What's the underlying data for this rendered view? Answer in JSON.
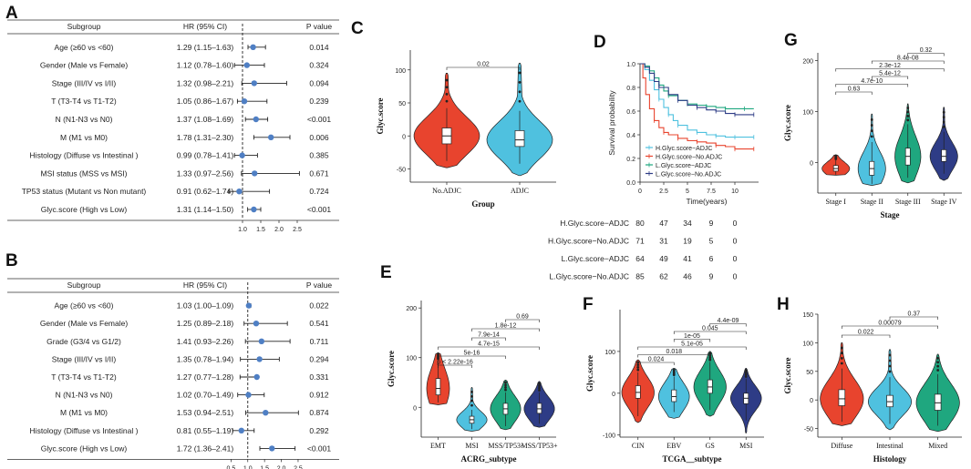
{
  "chart_data": [
    {
      "panel": "A",
      "type": "table",
      "subtype": "forest",
      "headers": [
        "Subgroup",
        "HR (95% CI)",
        "P value"
      ],
      "rows": [
        {
          "label": "Age (≥60 vs <60)",
          "hr_text": "1.29 (1.15–1.63)",
          "p": "0.014",
          "hr": 1.29,
          "lo": 1.15,
          "hi": 1.63
        },
        {
          "label": "Gender (Male vs Female)",
          "hr_text": "1.12 (0.78–1.60)",
          "p": "0.324",
          "hr": 1.12,
          "lo": 0.78,
          "hi": 1.6
        },
        {
          "label": "Stage (III/IV vs I/II)",
          "hr_text": "1.32 (0.98–2.21)",
          "p": "0.094",
          "hr": 1.32,
          "lo": 0.98,
          "hi": 2.21
        },
        {
          "label": "T (T3-T4 vs T1-T2)",
          "hr_text": "1.05 (0.86–1.67)",
          "p": "0.239",
          "hr": 1.05,
          "lo": 0.86,
          "hi": 1.67
        },
        {
          "label": "N (N1-N3 vs N0)",
          "hr_text": "1.37 (1.08–1.69)",
          "p": "<0.001",
          "hr": 1.37,
          "lo": 1.08,
          "hi": 1.69
        },
        {
          "label": "M (M1 vs M0)",
          "hr_text": "1.78 (1.31–2.30)",
          "p": "0.006",
          "hr": 1.78,
          "lo": 1.31,
          "hi": 2.3
        },
        {
          "label": "Histology (Diffuse vs Intestinal )",
          "hr_text": "0.99 (0.78–1.41)",
          "p": "0.385",
          "hr": 0.99,
          "lo": 0.78,
          "hi": 1.41
        },
        {
          "label": "MSI status (MSS vs MSI)",
          "hr_text": "1.33 (0.97–2.56)",
          "p": "0.671",
          "hr": 1.33,
          "lo": 0.97,
          "hi": 2.56
        },
        {
          "label": "TP53 status (Mutant vs Non mutant)",
          "hr_text": "0.91 (0.62–1.74)",
          "p": "0.724",
          "hr": 0.91,
          "lo": 0.62,
          "hi": 1.74
        },
        {
          "label": "Glyc.score (High vs Low)",
          "hr_text": "1.31 (1.14–1.50)",
          "p": "<0.001",
          "hr": 1.31,
          "lo": 1.14,
          "hi": 1.5
        }
      ],
      "xticks": [
        "1.0",
        "1.5",
        "2.0",
        "2.5"
      ],
      "ref_line": 1.0,
      "xlim": [
        0.5,
        2.8
      ]
    },
    {
      "panel": "B",
      "type": "table",
      "subtype": "forest",
      "headers": [
        "Subgroup",
        "HR (95% CI)",
        "P value"
      ],
      "rows": [
        {
          "label": "Age (≥60 vs <60)",
          "hr_text": "1.03 (1.00–1.09)",
          "p": "0.022",
          "hr": 1.03,
          "lo": 1.0,
          "hi": 1.09
        },
        {
          "label": "Gender (Male vs Female)",
          "hr_text": "1.25 (0.89–2.18)",
          "p": "0.541",
          "hr": 1.25,
          "lo": 0.89,
          "hi": 2.18
        },
        {
          "label": "Grade (G3/4 vs G1/2)",
          "hr_text": "1.41 (0.93–2.26)",
          "p": "0.711",
          "hr": 1.41,
          "lo": 0.93,
          "hi": 2.26
        },
        {
          "label": "Stage (III/IV vs I/II)",
          "hr_text": "1.35 (0.78–1.94)",
          "p": "0.294",
          "hr": 1.35,
          "lo": 0.78,
          "hi": 1.94
        },
        {
          "label": "T (T3-T4 vs T1-T2)",
          "hr_text": "1.27 (0.77–1.28)",
          "p": "0.331",
          "hr": 1.27,
          "lo": 0.77,
          "hi": 1.28
        },
        {
          "label": "N (N1-N3 vs N0)",
          "hr_text": "1.02 (0.70–1.49)",
          "p": "0.912",
          "hr": 1.02,
          "lo": 0.7,
          "hi": 1.49
        },
        {
          "label": "M (M1 vs M0)",
          "hr_text": "1.53 (0.94–2.51)",
          "p": "0.874",
          "hr": 1.53,
          "lo": 0.94,
          "hi": 2.51
        },
        {
          "label": "Histology (Diffuse vs Intestinal )",
          "hr_text": "0.81 (0.55–1.19)",
          "p": "0.292",
          "hr": 0.81,
          "lo": 0.55,
          "hi": 1.19
        },
        {
          "label": "Glyc.score (High vs Low)",
          "hr_text": "1.72 (1.36–2.41)",
          "p": "<0.001",
          "hr": 1.72,
          "lo": 1.36,
          "hi": 2.41
        }
      ],
      "xticks": [
        "0.5",
        "1.0",
        "1.5",
        "2.0",
        "2.5"
      ],
      "ref_line": 1.0,
      "xlim": [
        0.3,
        2.8
      ]
    },
    {
      "panel": "C",
      "type": "violin",
      "title": "",
      "xlabel": "Group",
      "ylabel": "Glyc.score",
      "ylim": [
        -70,
        130
      ],
      "yticks": [
        -50,
        0,
        50,
        100
      ],
      "groups": [
        {
          "name": "No.ADJC",
          "color": "#E8442E",
          "median": 0,
          "q1": -12,
          "q3": 12,
          "min": -48,
          "max": 95,
          "wlo": -38,
          "whi": 42,
          "width": 1.0
        },
        {
          "name": "ADJC",
          "color": "#4FC1DF",
          "median": -6,
          "q1": -16,
          "q3": 8,
          "min": -60,
          "max": 110,
          "wlo": -42,
          "whi": 38,
          "width": 1.0
        }
      ],
      "comparisons": [
        {
          "a": 0,
          "b": 1,
          "p": "0.02"
        }
      ]
    },
    {
      "panel": "D",
      "type": "line",
      "subtype": "kaplan-meier",
      "xlabel": "Time(years)",
      "ylabel": "Survival probability",
      "xlim": [
        0,
        12.5
      ],
      "ylim": [
        0,
        1.0
      ],
      "xticks": [
        0.0,
        2.5,
        5.0,
        7.5,
        10.0
      ],
      "xtick_labels": [
        "0",
        "2.5",
        "5",
        "7.5",
        "10"
      ],
      "yticks": [
        "0.0",
        "0.2",
        "0.4",
        "0.6",
        "0.8",
        "1.0"
      ],
      "series": [
        {
          "name": "H.Glyc.score−ADJC",
          "color": "#4FC1DF",
          "x": [
            0,
            0.5,
            1,
            1.5,
            2,
            2.5,
            3,
            3.5,
            4,
            5,
            6,
            7,
            8,
            9,
            10,
            11,
            12
          ],
          "y": [
            1.0,
            0.95,
            0.86,
            0.78,
            0.7,
            0.63,
            0.57,
            0.52,
            0.48,
            0.44,
            0.42,
            0.4,
            0.39,
            0.38,
            0.38,
            0.38,
            0.38
          ]
        },
        {
          "name": "H.Glyc.score−No.ADJC",
          "color": "#E8442E",
          "x": [
            0,
            0.3,
            0.6,
            1,
            1.5,
            2,
            2.5,
            3,
            4,
            5,
            6,
            7,
            8,
            9,
            10,
            11,
            12
          ],
          "y": [
            1.0,
            0.88,
            0.74,
            0.62,
            0.52,
            0.46,
            0.42,
            0.4,
            0.37,
            0.35,
            0.34,
            0.33,
            0.31,
            0.3,
            0.28,
            0.28,
            0.28
          ]
        },
        {
          "name": "L.Glyc.score−ADJC",
          "color": "#1FA77F",
          "x": [
            0,
            0.5,
            1,
            1.5,
            2,
            2.5,
            3,
            4,
            5,
            6,
            7,
            8,
            9,
            10,
            11,
            12
          ],
          "y": [
            1.0,
            0.98,
            0.94,
            0.88,
            0.82,
            0.77,
            0.73,
            0.69,
            0.66,
            0.65,
            0.64,
            0.63,
            0.62,
            0.62,
            0.62,
            0.62
          ]
        },
        {
          "name": "L.Glyc.score−No.ADJC",
          "color": "#2E3C86",
          "x": [
            0,
            0.5,
            1,
            1.5,
            2,
            3,
            4,
            5,
            6,
            7,
            8,
            9,
            10,
            11,
            12
          ],
          "y": [
            1.0,
            0.97,
            0.92,
            0.85,
            0.8,
            0.74,
            0.69,
            0.65,
            0.63,
            0.61,
            0.6,
            0.58,
            0.57,
            0.57,
            0.57
          ]
        }
      ],
      "risk_table": {
        "rows": [
          {
            "name": "H.Glyc.score−ADJC",
            "color": "#4FC1DF",
            "counts": [
              "80",
              "47",
              "34",
              "9",
              "0"
            ]
          },
          {
            "name": "H.Glyc.score−No.ADJC",
            "color": "#E8442E",
            "counts": [
              "71",
              "31",
              "19",
              "5",
              "0"
            ]
          },
          {
            "name": "L.Glyc.score−ADJC",
            "color": "#1FA77F",
            "counts": [
              "64",
              "49",
              "41",
              "6",
              "0"
            ]
          },
          {
            "name": "L.Glyc.score−No.ADJC",
            "color": "#2E3C86",
            "counts": [
              "85",
              "62",
              "46",
              "9",
              "0"
            ]
          }
        ]
      }
    },
    {
      "panel": "E",
      "type": "violin",
      "xlabel": "ACRG_subtype",
      "ylabel": "Glyc.score",
      "ylim": [
        -60,
        215
      ],
      "yticks": [
        0,
        100,
        200
      ],
      "groups": [
        {
          "name": "EMT",
          "color": "#E8442E",
          "median": 38,
          "q1": 25,
          "q3": 58,
          "min": 5,
          "max": 110,
          "wlo": 10,
          "whi": 95,
          "width": 0.75
        },
        {
          "name": "MSI",
          "color": "#4FC1DF",
          "median": -25,
          "q1": -32,
          "q3": -18,
          "min": -48,
          "max": 40,
          "wlo": -44,
          "whi": -5,
          "width": 1.0
        },
        {
          "name": "MSS/TP53-",
          "color": "#1FA77F",
          "median": -3,
          "q1": -14,
          "q3": 8,
          "min": -45,
          "max": 55,
          "wlo": -38,
          "whi": 30,
          "width": 1.0
        },
        {
          "name": "MSS/TP53+",
          "color": "#2E3C86",
          "median": -3,
          "q1": -12,
          "q3": 8,
          "min": -40,
          "max": 52,
          "wlo": -33,
          "whi": 30,
          "width": 1.0
        }
      ],
      "comparisons": [
        {
          "a": 0,
          "b": 1,
          "p": "p < 2.22e-16"
        },
        {
          "a": 0,
          "b": 2,
          "p": "5e-16"
        },
        {
          "a": 0,
          "b": 3,
          "p": "4.7e-15"
        },
        {
          "a": 1,
          "b": 2,
          "p": "7.9e-14"
        },
        {
          "a": 1,
          "b": 3,
          "p": "1.8e-12"
        },
        {
          "a": 2,
          "b": 3,
          "p": "0.69"
        }
      ]
    },
    {
      "panel": "F",
      "type": "violin",
      "xlabel": "TCGA__subtype",
      "ylabel": "Glyc.score",
      "ylim": [
        -105,
        200
      ],
      "yticks": [
        -100,
        0,
        100
      ],
      "groups": [
        {
          "name": "CIN",
          "color": "#E8442E",
          "median": 2,
          "q1": -12,
          "q3": 18,
          "min": -70,
          "max": 80,
          "wlo": -55,
          "whi": 50,
          "width": 1.0
        },
        {
          "name": "EBV",
          "color": "#4FC1DF",
          "median": -8,
          "q1": -20,
          "q3": 8,
          "min": -60,
          "max": 60,
          "wlo": -45,
          "whi": 40,
          "width": 0.95
        },
        {
          "name": "GS",
          "color": "#1FA77F",
          "median": 15,
          "q1": 0,
          "q3": 32,
          "min": -55,
          "max": 100,
          "wlo": -40,
          "whi": 75,
          "width": 1.0
        },
        {
          "name": "MSI",
          "color": "#2E3C86",
          "median": -12,
          "q1": -25,
          "q3": 0,
          "min": -95,
          "max": 60,
          "wlo": -65,
          "whi": 35,
          "width": 0.95
        }
      ],
      "comparisons": [
        {
          "a": 0,
          "b": 1,
          "p": "0.024"
        },
        {
          "a": 0,
          "b": 2,
          "p": "0.018"
        },
        {
          "a": 0,
          "b": 3,
          "p": "5.1e-05"
        },
        {
          "a": 1,
          "b": 2,
          "p": "1e-05"
        },
        {
          "a": 1,
          "b": 3,
          "p": "0.045"
        },
        {
          "a": 2,
          "b": 3,
          "p": "4.4e-09"
        }
      ]
    },
    {
      "panel": "G",
      "type": "violin",
      "xlabel": "Stage",
      "ylabel": "Glyc.score",
      "ylim": [
        -60,
        215
      ],
      "yticks": [
        0,
        100,
        200
      ],
      "groups": [
        {
          "name": "Stage I",
          "color": "#E8442E",
          "median": -12,
          "q1": -17,
          "q3": -6,
          "min": -25,
          "max": 15,
          "wlo": -24,
          "whi": 5,
          "width": 0.85
        },
        {
          "name": "Stage II",
          "color": "#4FC1DF",
          "median": -12,
          "q1": -25,
          "q3": 2,
          "min": -45,
          "max": 95,
          "wlo": -42,
          "whi": 40,
          "width": 0.85
        },
        {
          "name": "Stage III",
          "color": "#1FA77F",
          "median": 12,
          "q1": -5,
          "q3": 28,
          "min": -40,
          "max": 115,
          "wlo": -30,
          "whi": 75,
          "width": 0.8
        },
        {
          "name": "Stage IV",
          "color": "#2E3C86",
          "median": 12,
          "q1": 2,
          "q3": 25,
          "min": -35,
          "max": 108,
          "wlo": -22,
          "whi": 60,
          "width": 0.85
        }
      ],
      "comparisons": [
        {
          "a": 0,
          "b": 1,
          "p": "0.63"
        },
        {
          "a": 0,
          "b": 2,
          "p": "4.7e-10"
        },
        {
          "a": 1,
          "b": 2,
          "p": "5.4e-12"
        },
        {
          "a": 0,
          "b": 3,
          "p": "2.3e-12"
        },
        {
          "a": 1,
          "b": 3,
          "p": "8.4e-08"
        },
        {
          "a": 2,
          "b": 3,
          "p": "0.32"
        }
      ]
    },
    {
      "panel": "H",
      "type": "violin",
      "xlabel": "Histology",
      "ylabel": "Glyc.score",
      "ylim": [
        -65,
        150
      ],
      "yticks": [
        -50,
        0,
        50,
        100,
        150
      ],
      "groups": [
        {
          "name": "Diffuse",
          "color": "#E8442E",
          "median": 2,
          "q1": -10,
          "q3": 18,
          "min": -45,
          "max": 100,
          "wlo": -38,
          "whi": 55,
          "width": 1.0
        },
        {
          "name": "Intestinal",
          "color": "#4FC1DF",
          "median": -3,
          "q1": -12,
          "q3": 8,
          "min": -52,
          "max": 88,
          "wlo": -42,
          "whi": 40,
          "width": 1.0
        },
        {
          "name": "Mixed",
          "color": "#1FA77F",
          "median": -5,
          "q1": -18,
          "q3": 10,
          "min": -55,
          "max": 80,
          "wlo": -45,
          "whi": 45,
          "width": 1.0
        }
      ],
      "comparisons": [
        {
          "a": 0,
          "b": 1,
          "p": "0.022"
        },
        {
          "a": 0,
          "b": 2,
          "p": "0.00079"
        },
        {
          "a": 1,
          "b": 2,
          "p": "0.37"
        }
      ]
    }
  ]
}
